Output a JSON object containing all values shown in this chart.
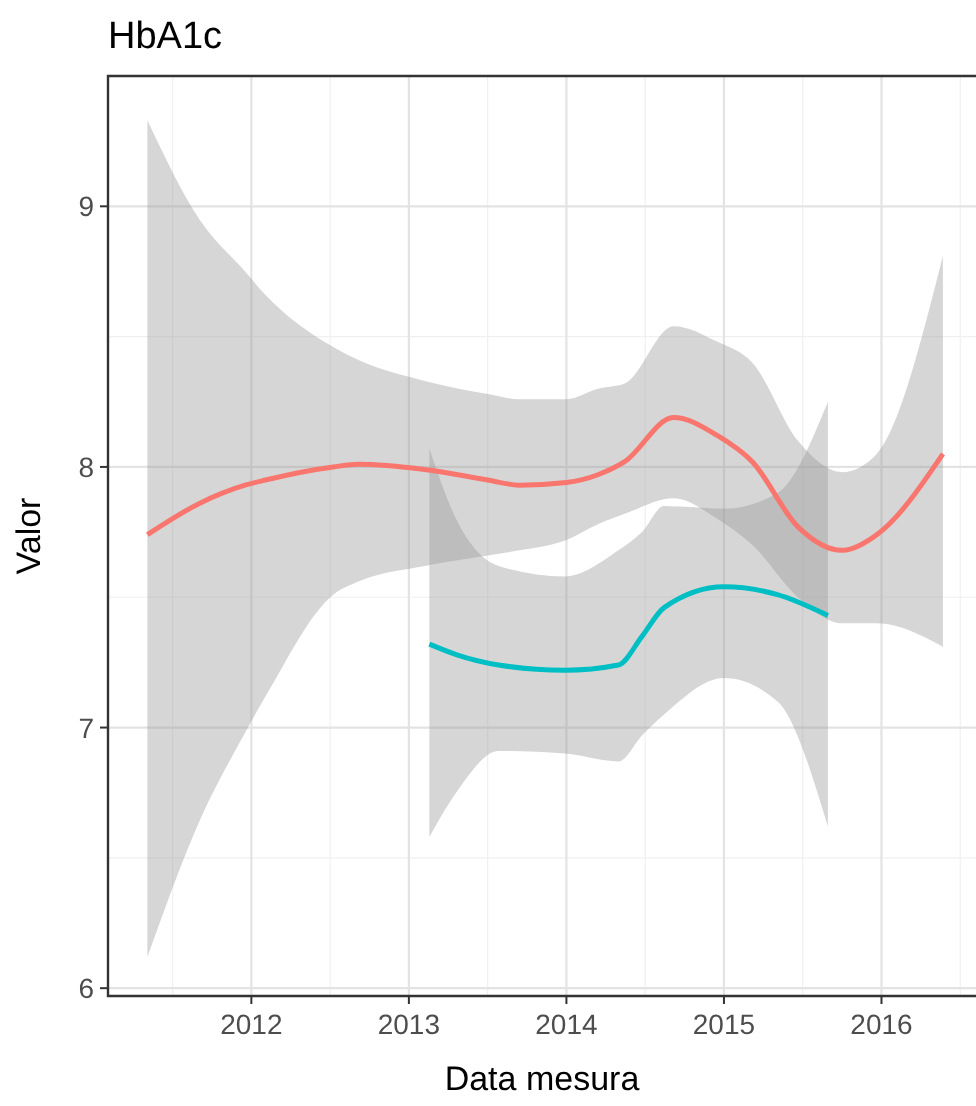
{
  "chart_data": {
    "type": "line",
    "title": "HbA1c",
    "xlabel": "Data mesura",
    "ylabel": "Valor",
    "xlim": [
      2011.09,
      2016.6
    ],
    "xticks": [
      2012,
      2013,
      2014,
      2015,
      2016
    ],
    "ylim": [
      5.97,
      9.5
    ],
    "yticks": [
      6,
      7,
      8,
      9
    ],
    "grid": true,
    "line_style": "solid",
    "marker": "none",
    "series": [
      {
        "color": "#f8766d",
        "x": [
          2011.34,
          2011.67,
          2011.96,
          2012.09,
          2012.52,
          2012.68,
          2013.1,
          2013.5,
          2013.7,
          2014.0,
          2014.2,
          2014.37,
          2014.68,
          2014.96,
          2015.18,
          2015.47,
          2015.75,
          2015.97,
          2016.39
        ],
        "values": [
          7.74,
          7.86,
          7.93,
          7.95,
          8.0,
          8.01,
          7.99,
          7.95,
          7.93,
          7.94,
          7.97,
          8.02,
          8.19,
          8.12,
          8.02,
          7.77,
          7.68,
          7.74,
          8.05
        ],
        "upper": [
          9.33,
          8.95,
          8.75,
          8.66,
          8.46,
          8.41,
          8.33,
          8.28,
          8.26,
          8.26,
          8.3,
          8.32,
          8.54,
          8.48,
          8.4,
          8.1,
          7.98,
          8.05,
          8.81
        ],
        "lower": [
          6.12,
          6.64,
          6.98,
          7.12,
          7.51,
          7.56,
          7.62,
          7.66,
          7.68,
          7.72,
          7.78,
          7.82,
          7.88,
          7.8,
          7.7,
          7.5,
          7.4,
          7.4,
          7.31
        ]
      },
      {
        "color": "#00bfc4",
        "x": [
          2013.13,
          2013.3,
          2013.57,
          2013.99,
          2014.33,
          2014.48,
          2014.62,
          2015.0,
          2015.34,
          2015.66
        ],
        "values": [
          7.32,
          7.28,
          7.24,
          7.22,
          7.24,
          7.35,
          7.46,
          7.54,
          7.51,
          7.43
        ],
        "upper": [
          8.07,
          7.8,
          7.62,
          7.58,
          7.68,
          7.75,
          7.85,
          7.84,
          7.9,
          8.25
        ],
        "lower": [
          6.58,
          6.75,
          6.91,
          6.9,
          6.87,
          6.97,
          7.05,
          7.19,
          7.1,
          6.62
        ]
      }
    ]
  }
}
